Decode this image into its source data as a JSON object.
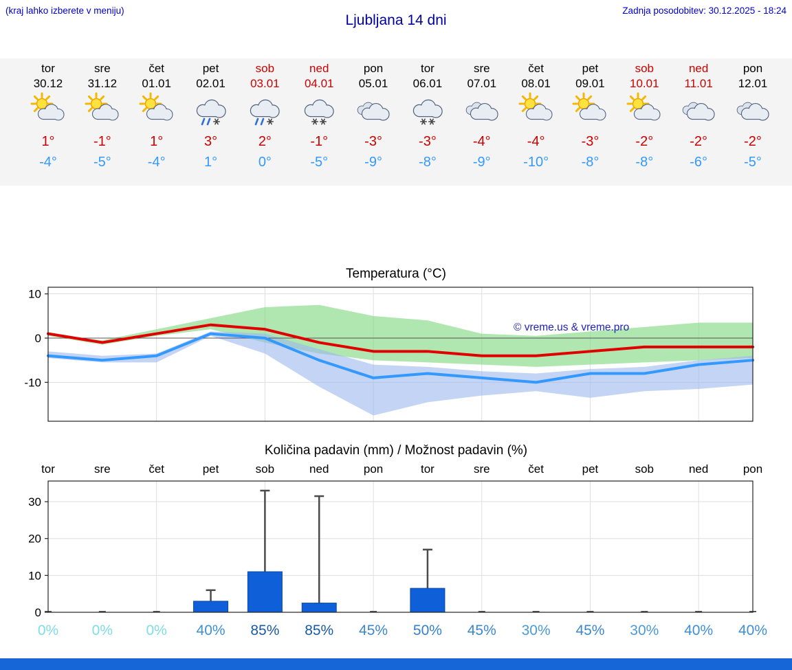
{
  "header": {
    "left_note": "(kraj lahko izberete v meniju)",
    "title": "Ljubljana 14 dni",
    "updated": "Zadnja posodobitev: 30.12.2025 - 18:24"
  },
  "colors": {
    "note_blue": "#0000cc",
    "title_blue": "#0000a0",
    "weekend_red": "#cc0000",
    "weekday_black": "#000000",
    "high_red": "#cc0000",
    "low_blue": "#3399ff",
    "strip_bg": "#f4f4f4",
    "bottom_bar": "#1766d8",
    "watermark_blue": "#2222bb"
  },
  "forecast": {
    "days": [
      {
        "day": "tor",
        "date": "30.12",
        "weekend": false,
        "icon": "sun-cloud",
        "high": "1°",
        "low": "-4°"
      },
      {
        "day": "sre",
        "date": "31.12",
        "weekend": false,
        "icon": "sun-cloud",
        "high": "-1°",
        "low": "-5°"
      },
      {
        "day": "čet",
        "date": "01.01",
        "weekend": false,
        "icon": "sun-cloud",
        "high": "1°",
        "low": "-4°"
      },
      {
        "day": "pet",
        "date": "02.01",
        "weekend": false,
        "icon": "rain-snow-cloud",
        "high": "3°",
        "low": "1°"
      },
      {
        "day": "sob",
        "date": "03.01",
        "weekend": true,
        "icon": "rain-snow-cloud",
        "high": "2°",
        "low": "0°"
      },
      {
        "day": "ned",
        "date": "04.01",
        "weekend": true,
        "icon": "snow-cloud",
        "high": "-1°",
        "low": "-5°"
      },
      {
        "day": "pon",
        "date": "05.01",
        "weekend": false,
        "icon": "cloud",
        "high": "-3°",
        "low": "-9°"
      },
      {
        "day": "tor",
        "date": "06.01",
        "weekend": false,
        "icon": "snow-cloud",
        "high": "-3°",
        "low": "-8°"
      },
      {
        "day": "sre",
        "date": "07.01",
        "weekend": false,
        "icon": "cloud",
        "high": "-4°",
        "low": "-9°"
      },
      {
        "day": "čet",
        "date": "08.01",
        "weekend": false,
        "icon": "sun-cloud",
        "high": "-4°",
        "low": "-10°"
      },
      {
        "day": "pet",
        "date": "09.01",
        "weekend": false,
        "icon": "sun-cloud",
        "high": "-3°",
        "low": "-8°"
      },
      {
        "day": "sob",
        "date": "10.01",
        "weekend": true,
        "icon": "sun-cloud",
        "high": "-2°",
        "low": "-8°"
      },
      {
        "day": "ned",
        "date": "11.01",
        "weekend": true,
        "icon": "cloud",
        "high": "-2°",
        "low": "-6°"
      },
      {
        "day": "pon",
        "date": "12.01",
        "weekend": false,
        "icon": "cloud",
        "high": "-2°",
        "low": "-5°"
      }
    ]
  },
  "chart_data": [
    {
      "type": "line",
      "title": "Temperatura (°C)",
      "categories": [
        "tor",
        "sre",
        "čet",
        "pet",
        "sob",
        "ned",
        "pon",
        "tor",
        "sre",
        "čet",
        "pet",
        "sob",
        "ned",
        "pon"
      ],
      "ylim": [
        -18.8,
        11.5
      ],
      "yticks": [
        10,
        0,
        -10
      ],
      "grid": true,
      "watermark": "© vreme.us & vreme.pro",
      "series": [
        {
          "name": "max temperature",
          "color": "#e00000",
          "values": [
            1,
            -1,
            1,
            3,
            2,
            -1,
            -3,
            -3,
            -4,
            -4,
            -3,
            -2,
            -2,
            -2
          ]
        },
        {
          "name": "min temperature",
          "color": "#3399ff",
          "values": [
            -4,
            -5,
            -4,
            1,
            0,
            -5,
            -9,
            -8,
            -9,
            -10,
            -8,
            -8,
            -6,
            -5
          ]
        }
      ],
      "bands": [
        {
          "name": "max-uncertainty",
          "color": "#7cd67c",
          "upper": [
            1,
            -0.5,
            2,
            4.5,
            7,
            7.5,
            5,
            4,
            1,
            0.5,
            1.5,
            2.5,
            3.5,
            3.5
          ],
          "lower": [
            0.5,
            -1.5,
            0.5,
            2,
            -1,
            -3.5,
            -5,
            -5.5,
            -6,
            -6.5,
            -6,
            -5.5,
            -5,
            -4.5
          ]
        },
        {
          "name": "min-uncertainty",
          "color": "#9cb8ee",
          "upper": [
            -3,
            -4,
            -3.5,
            1.5,
            1,
            -2.5,
            -6,
            -6.5,
            -7.5,
            -8,
            -7,
            -6.5,
            -5,
            -4
          ],
          "lower": [
            -4.5,
            -5.5,
            -5.5,
            0.5,
            -3.5,
            -11,
            -17.5,
            -14.5,
            -13,
            -12,
            -13.5,
            -12,
            -11.5,
            -10.5
          ]
        }
      ]
    },
    {
      "type": "bar",
      "title": "Količina padavin (mm) / Možnost padavin (%)",
      "categories": [
        "tor",
        "sre",
        "čet",
        "pet",
        "sob",
        "ned",
        "pon",
        "tor",
        "sre",
        "čet",
        "pet",
        "sob",
        "ned",
        "pon"
      ],
      "ylim": [
        0,
        35.6
      ],
      "yticks": [
        0,
        10,
        20,
        30
      ],
      "ylabel": "mm",
      "bar_color": "#0f5fd9",
      "bar_edge_color": "#0b47a8",
      "whisker_color": "#4a4a4a",
      "values": [
        0,
        0,
        0,
        3,
        11,
        2.5,
        0,
        6.5,
        0,
        0,
        0,
        0,
        0,
        0
      ],
      "error_max": [
        0,
        0,
        0,
        6,
        33,
        31.5,
        0,
        17,
        0,
        0,
        0,
        0,
        0,
        0
      ],
      "percent_labels": [
        "0%",
        "0%",
        "0%",
        "40%",
        "85%",
        "85%",
        "45%",
        "50%",
        "45%",
        "30%",
        "45%",
        "30%",
        "40%",
        "40%"
      ],
      "percent_colors": [
        "#7fdde4",
        "#7fdde4",
        "#7fdde4",
        "#3f8fd6",
        "#1a5aa6",
        "#1a5aa6",
        "#3a87d0",
        "#3580cb",
        "#3a87d0",
        "#4a9ad9",
        "#3a87d0",
        "#4a9ad9",
        "#3f8fd6",
        "#3f8fd6"
      ]
    }
  ]
}
